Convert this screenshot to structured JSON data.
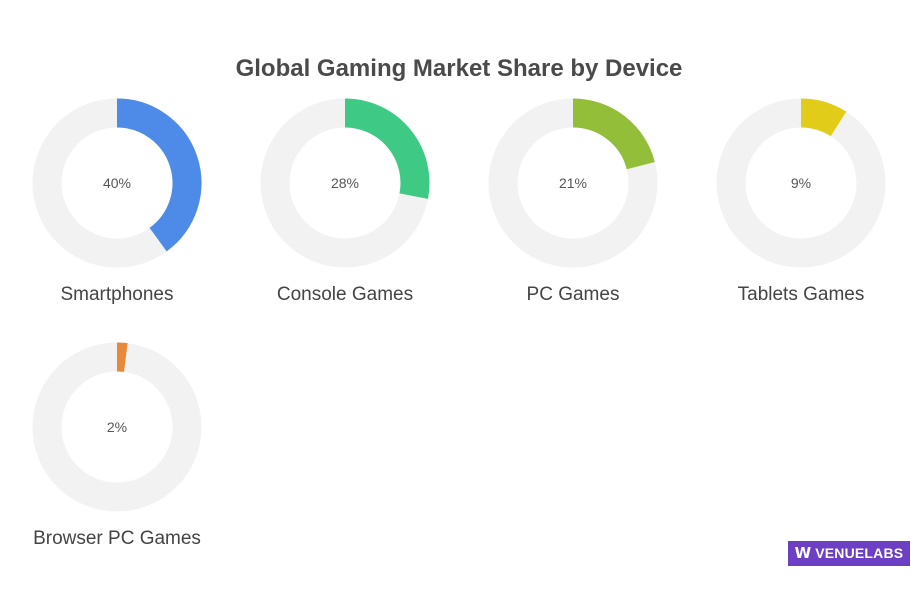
{
  "chart_data": {
    "type": "pie",
    "variant": "donut-small-multiples",
    "title": "Global Gaming Market Share by Device",
    "track_color": "#f2f2f2",
    "categories": [
      "Smartphones",
      "Console Games",
      "PC Games",
      "Tablets Games",
      "Browser PC Games"
    ],
    "values": [
      40,
      28,
      21,
      9,
      2
    ],
    "value_labels": [
      "40%",
      "28%",
      "21%",
      "9%",
      "2%"
    ],
    "colors": [
      "#4e8ae8",
      "#3ec984",
      "#93be3a",
      "#e2cc1a",
      "#e8893a"
    ],
    "unit": "%"
  },
  "logo": {
    "text": "VENUELABS",
    "color": "#6c3fc5"
  }
}
